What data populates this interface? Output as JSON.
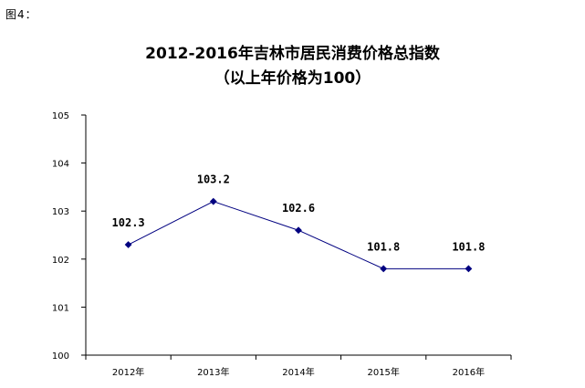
{
  "figure_label": "图4：",
  "chart_data": {
    "type": "line",
    "title": "2012-2016年吉林市居民消费价格总指数",
    "subtitle": "（以上年价格为100）",
    "xlabel": "",
    "ylabel": "",
    "categories": [
      "2012年",
      "2013年",
      "2014年",
      "2015年",
      "2016年"
    ],
    "values": [
      102.3,
      103.2,
      102.6,
      101.8,
      101.8
    ],
    "data_labels": [
      "102.3",
      "103.2",
      "102.6",
      "101.8",
      "101.8"
    ],
    "ylim": [
      100,
      105
    ],
    "yticks": [
      "100",
      "101",
      "102",
      "103",
      "104",
      "105"
    ],
    "grid": false,
    "legend": "none",
    "line_color": "#000080",
    "marker_color": "#000080"
  }
}
